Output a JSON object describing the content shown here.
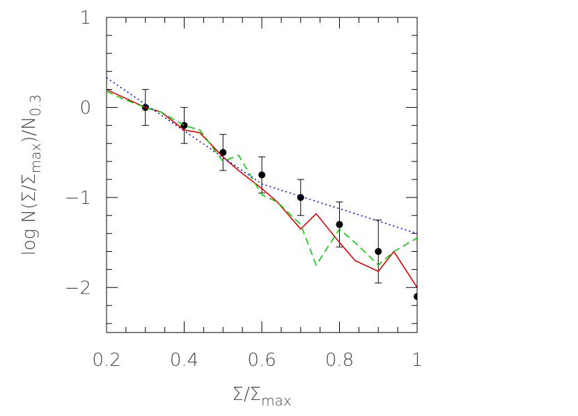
{
  "chart_data": {
    "type": "line",
    "xlabel_parts": [
      {
        "text": "Σ/Σ"
      },
      {
        "text": "max",
        "sub": true
      }
    ],
    "ylabel_parts": [
      {
        "text": "log  N(Σ/Σ"
      },
      {
        "text": "max",
        "sub": true
      },
      {
        "text": ")/N"
      },
      {
        "text": "0.3",
        "sub": true
      }
    ],
    "xlim": [
      0.2,
      1.0
    ],
    "ylim": [
      -2.5,
      1
    ],
    "xticks": [
      0.2,
      0.4,
      0.6,
      0.8,
      1
    ],
    "yticks": [
      1,
      0,
      {
        "value": -1,
        "label": "−1"
      },
      {
        "value": -2,
        "label": "−2"
      }
    ],
    "xminor_ticks": [
      0.25,
      0.3,
      0.35,
      0.45,
      0.5,
      0.55,
      0.65,
      0.7,
      0.75,
      0.85,
      0.9,
      0.95
    ],
    "yminor_ticks": [
      0.8,
      0.6,
      0.4,
      0.2,
      -0.2,
      -0.4,
      -0.6,
      -0.8,
      -1.2,
      -1.4,
      -1.6,
      -1.8,
      -2.2,
      -2.4
    ],
    "series": [
      {
        "type": "errorbar",
        "color": "#000000",
        "x": [
          0.3,
          0.4,
          0.5,
          0.6,
          0.7,
          0.8,
          0.9,
          1.0
        ],
        "values": [
          0,
          -0.2,
          -0.5,
          -0.75,
          -1.0,
          -1.3,
          -1.6,
          -2.1
        ],
        "errors": [
          0.2,
          0.2,
          0.2,
          0.2,
          0.2,
          0.25,
          0.35,
          0.5
        ]
      },
      {
        "type": "line",
        "color": "#e00000",
        "dash": "solid",
        "x": [
          0.2,
          0.3,
          0.34,
          0.4,
          0.44,
          0.5,
          0.54,
          0.6,
          0.64,
          0.7,
          0.74,
          0.8,
          0.84,
          0.9,
          0.94,
          1.0
        ],
        "values": [
          0.2,
          0,
          -0.05,
          -0.25,
          -0.28,
          -0.55,
          -0.7,
          -0.9,
          -1.05,
          -1.35,
          -1.18,
          -1.5,
          -1.7,
          -1.82,
          -1.6,
          -2.0
        ]
      },
      {
        "type": "line",
        "color": "#00cc00",
        "dash": "dashed",
        "x": [
          0.2,
          0.24,
          0.3,
          0.34,
          0.4,
          0.44,
          0.5,
          0.54,
          0.6,
          0.64,
          0.7,
          0.74,
          0.8,
          0.84,
          0.9,
          0.94,
          1.0
        ],
        "values": [
          0.18,
          0.1,
          0,
          -0.05,
          -0.2,
          -0.25,
          -0.6,
          -0.53,
          -0.97,
          -1.05,
          -1.3,
          -1.75,
          -1.35,
          -1.5,
          -1.75,
          -1.6,
          -1.45
        ]
      },
      {
        "type": "line",
        "color": "#0000dd",
        "dash": "dotted",
        "x": [
          0.2,
          0.6,
          1.0
        ],
        "values": [
          0.33,
          -0.85,
          -1.4
        ]
      }
    ]
  }
}
